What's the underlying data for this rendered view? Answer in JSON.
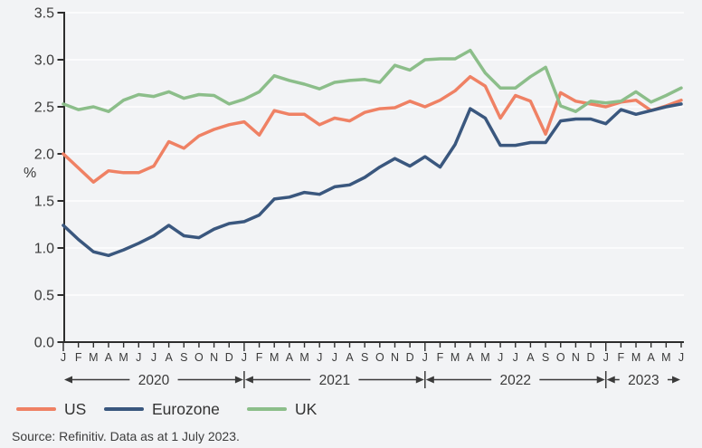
{
  "chart_data": {
    "type": "line",
    "title": "",
    "ylabel": "%",
    "ylim": [
      0.0,
      3.5
    ],
    "yticks": [
      0.0,
      0.5,
      1.0,
      1.5,
      2.0,
      2.5,
      3.0,
      3.5
    ],
    "grid": true,
    "legend_position": "bottom-left",
    "colors": {
      "background": "#F2F3F5",
      "gridline": "#FFFFFF",
      "axis": "#2D2D2D",
      "text": "#3A3A3A"
    },
    "years": [
      {
        "label": "2020",
        "month_labels": [
          "J",
          "F",
          "M",
          "A",
          "M",
          "J",
          "J",
          "A",
          "S",
          "O",
          "N",
          "D"
        ]
      },
      {
        "label": "2021",
        "month_labels": [
          "J",
          "F",
          "M",
          "A",
          "M",
          "J",
          "J",
          "A",
          "S",
          "O",
          "N",
          "D"
        ]
      },
      {
        "label": "2022",
        "month_labels": [
          "J",
          "F",
          "M",
          "A",
          "M",
          "J",
          "J",
          "A",
          "S",
          "O",
          "N",
          "D"
        ]
      },
      {
        "label": "2023",
        "month_labels": [
          "J",
          "F",
          "M",
          "A",
          "M",
          "J"
        ]
      }
    ],
    "series": [
      {
        "name": "US",
        "color": "#EF8164",
        "values": [
          2.0,
          1.85,
          1.7,
          1.82,
          1.8,
          1.8,
          1.87,
          2.13,
          2.06,
          2.19,
          2.26,
          2.31,
          2.34,
          2.2,
          2.46,
          2.42,
          2.42,
          2.31,
          2.38,
          2.35,
          2.44,
          2.48,
          2.49,
          2.56,
          2.5,
          2.57,
          2.67,
          2.82,
          2.72,
          2.38,
          2.62,
          2.56,
          2.21,
          2.65,
          2.56,
          2.53,
          2.5,
          2.55,
          2.57,
          2.46,
          2.51,
          2.57
        ]
      },
      {
        "name": "Eurozone",
        "color": "#3A577E",
        "values": [
          1.24,
          1.09,
          0.96,
          0.92,
          0.98,
          1.05,
          1.13,
          1.24,
          1.13,
          1.11,
          1.2,
          1.26,
          1.28,
          1.35,
          1.52,
          1.54,
          1.59,
          1.57,
          1.65,
          1.67,
          1.75,
          1.86,
          1.95,
          1.87,
          1.97,
          1.86,
          2.1,
          2.48,
          2.38,
          2.09,
          2.09,
          2.12,
          2.12,
          2.35,
          2.37,
          2.37,
          2.32,
          2.47,
          2.42,
          2.46,
          2.5,
          2.53
        ]
      },
      {
        "name": "UK",
        "color": "#8CBE8A",
        "values": [
          2.53,
          2.47,
          2.5,
          2.45,
          2.57,
          2.63,
          2.61,
          2.66,
          2.59,
          2.63,
          2.62,
          2.53,
          2.58,
          2.66,
          2.83,
          2.78,
          2.74,
          2.69,
          2.76,
          2.78,
          2.79,
          2.76,
          2.94,
          2.89,
          3.0,
          3.01,
          3.01,
          3.1,
          2.86,
          2.7,
          2.7,
          2.82,
          2.92,
          2.51,
          2.45,
          2.56,
          2.54,
          2.56,
          2.66,
          2.55,
          2.62,
          2.7
        ]
      }
    ]
  },
  "footer": {
    "source": "Source: Refinitiv. Data as at 1 July 2023."
  }
}
